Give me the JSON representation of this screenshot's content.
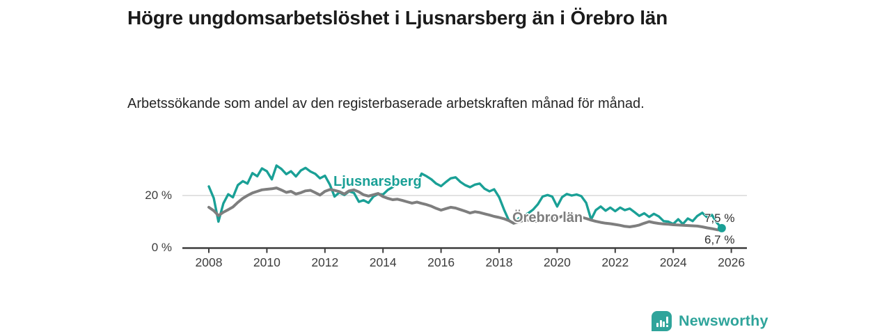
{
  "header": {
    "title": "Högre ungdomsarbetslöshet i Ljusnarsberg än i Örebro län",
    "subtitle": "Arbetssökande som andel av den registerbaserade arbetskraften månad för månad."
  },
  "chart_data": {
    "type": "line",
    "unit": "%",
    "grid": "horizontal-20-only",
    "legend": "inline-labels-on-lines",
    "axis_color": "#3d3d3d",
    "gridline_color": "#d8d8d8",
    "gridlines": [
      20
    ],
    "x_axis": {
      "ticks": [
        2008,
        2010,
        2012,
        2014,
        2016,
        2018,
        2020,
        2022,
        2024,
        2026
      ],
      "range": [
        2007.1,
        2026.55
      ]
    },
    "y_axis": {
      "ticks": [
        {
          "value": 0,
          "label": "0 %"
        },
        {
          "value": 20,
          "label": "20 %"
        }
      ],
      "range": [
        0,
        33
      ]
    },
    "series": [
      {
        "name": "Ljusnarsberg",
        "color": "#1aa096",
        "end_value": 7.5,
        "end_label": "7,5 %",
        "end_dot": true,
        "points": [
          [
            2008.0,
            23.5
          ],
          [
            2008.17,
            19.0
          ],
          [
            2008.33,
            10.0
          ],
          [
            2008.5,
            17.0
          ],
          [
            2008.67,
            20.5
          ],
          [
            2008.83,
            19.3
          ],
          [
            2009.0,
            24.0
          ],
          [
            2009.17,
            25.5
          ],
          [
            2009.33,
            24.6
          ],
          [
            2009.5,
            28.6
          ],
          [
            2009.67,
            27.4
          ],
          [
            2009.83,
            30.4
          ],
          [
            2010.0,
            29.3
          ],
          [
            2010.17,
            26.2
          ],
          [
            2010.33,
            31.5
          ],
          [
            2010.5,
            30.2
          ],
          [
            2010.67,
            28.2
          ],
          [
            2010.83,
            29.3
          ],
          [
            2011.0,
            27.3
          ],
          [
            2011.17,
            29.6
          ],
          [
            2011.33,
            30.6
          ],
          [
            2011.5,
            29.2
          ],
          [
            2011.67,
            28.3
          ],
          [
            2011.83,
            26.6
          ],
          [
            2012.0,
            27.6
          ],
          [
            2012.17,
            24.2
          ],
          [
            2012.33,
            19.6
          ],
          [
            2012.5,
            21.2
          ],
          [
            2012.67,
            20.2
          ],
          [
            2012.83,
            21.6
          ],
          [
            2013.0,
            21.0
          ],
          [
            2013.17,
            17.6
          ],
          [
            2013.33,
            18.2
          ],
          [
            2013.5,
            17.2
          ],
          [
            2013.67,
            19.6
          ],
          [
            2013.83,
            20.6
          ],
          [
            2014.0,
            20.4
          ],
          [
            2014.17,
            22.2
          ],
          [
            2014.33,
            23.2
          ],
          [
            2014.5,
            25.4
          ],
          [
            2014.67,
            24.4
          ],
          [
            2014.83,
            26.0
          ],
          [
            2015.0,
            26.6
          ],
          [
            2015.17,
            24.6
          ],
          [
            2015.33,
            28.4
          ],
          [
            2015.5,
            27.4
          ],
          [
            2015.67,
            26.2
          ],
          [
            2015.83,
            24.6
          ],
          [
            2016.0,
            23.6
          ],
          [
            2016.17,
            25.2
          ],
          [
            2016.33,
            26.6
          ],
          [
            2016.5,
            27.0
          ],
          [
            2016.67,
            25.2
          ],
          [
            2016.83,
            24.0
          ],
          [
            2017.0,
            23.2
          ],
          [
            2017.17,
            24.2
          ],
          [
            2017.33,
            24.6
          ],
          [
            2017.5,
            22.6
          ],
          [
            2017.67,
            21.6
          ],
          [
            2017.83,
            22.4
          ],
          [
            2018.0,
            19.4
          ],
          [
            2018.17,
            14.6
          ],
          [
            2018.33,
            10.6
          ],
          [
            2018.5,
            9.3
          ],
          [
            2018.67,
            11.2
          ],
          [
            2018.83,
            12.2
          ],
          [
            2019.0,
            13.2
          ],
          [
            2019.17,
            14.6
          ],
          [
            2019.33,
            16.6
          ],
          [
            2019.5,
            19.6
          ],
          [
            2019.67,
            20.2
          ],
          [
            2019.83,
            19.6
          ],
          [
            2020.0,
            15.8
          ],
          [
            2020.17,
            19.4
          ],
          [
            2020.33,
            20.6
          ],
          [
            2020.5,
            20.0
          ],
          [
            2020.67,
            20.4
          ],
          [
            2020.83,
            19.8
          ],
          [
            2021.0,
            17.2
          ],
          [
            2021.17,
            10.8
          ],
          [
            2021.33,
            14.4
          ],
          [
            2021.5,
            15.8
          ],
          [
            2021.67,
            14.2
          ],
          [
            2021.83,
            15.4
          ],
          [
            2022.0,
            14.0
          ],
          [
            2022.17,
            15.4
          ],
          [
            2022.33,
            14.4
          ],
          [
            2022.5,
            15.0
          ],
          [
            2022.67,
            13.6
          ],
          [
            2022.83,
            12.2
          ],
          [
            2023.0,
            13.2
          ],
          [
            2023.17,
            11.8
          ],
          [
            2023.33,
            13.0
          ],
          [
            2023.5,
            12.0
          ],
          [
            2023.67,
            10.2
          ],
          [
            2023.83,
            10.0
          ],
          [
            2024.0,
            9.1
          ],
          [
            2024.17,
            10.9
          ],
          [
            2024.33,
            9.1
          ],
          [
            2024.5,
            11.2
          ],
          [
            2024.67,
            10.2
          ],
          [
            2024.83,
            12.2
          ],
          [
            2025.0,
            13.4
          ],
          [
            2025.17,
            11.6
          ],
          [
            2025.33,
            12.6
          ],
          [
            2025.5,
            9.6
          ],
          [
            2025.67,
            7.5
          ]
        ]
      },
      {
        "name": "Örebro län",
        "color": "#7e7e7e",
        "end_value": 6.7,
        "end_label": "6,7 %",
        "end_dot": false,
        "points": [
          [
            2008.0,
            15.5
          ],
          [
            2008.17,
            14.2
          ],
          [
            2008.33,
            12.3
          ],
          [
            2008.5,
            13.6
          ],
          [
            2008.67,
            14.6
          ],
          [
            2008.83,
            15.6
          ],
          [
            2009.0,
            17.4
          ],
          [
            2009.17,
            18.9
          ],
          [
            2009.33,
            20.0
          ],
          [
            2009.5,
            21.0
          ],
          [
            2009.67,
            21.6
          ],
          [
            2009.83,
            22.2
          ],
          [
            2010.0,
            22.4
          ],
          [
            2010.17,
            22.6
          ],
          [
            2010.33,
            22.9
          ],
          [
            2010.5,
            22.1
          ],
          [
            2010.67,
            21.2
          ],
          [
            2010.83,
            21.6
          ],
          [
            2011.0,
            20.6
          ],
          [
            2011.17,
            21.1
          ],
          [
            2011.33,
            21.8
          ],
          [
            2011.5,
            22.0
          ],
          [
            2011.67,
            21.1
          ],
          [
            2011.83,
            20.2
          ],
          [
            2012.0,
            21.6
          ],
          [
            2012.17,
            22.3
          ],
          [
            2012.33,
            22.0
          ],
          [
            2012.5,
            21.5
          ],
          [
            2012.67,
            20.6
          ],
          [
            2012.83,
            21.8
          ],
          [
            2013.0,
            22.2
          ],
          [
            2013.17,
            21.4
          ],
          [
            2013.33,
            20.3
          ],
          [
            2013.5,
            19.8
          ],
          [
            2013.67,
            20.3
          ],
          [
            2013.83,
            20.8
          ],
          [
            2014.0,
            19.6
          ],
          [
            2014.17,
            18.9
          ],
          [
            2014.33,
            18.4
          ],
          [
            2014.5,
            18.6
          ],
          [
            2014.67,
            18.1
          ],
          [
            2014.83,
            17.6
          ],
          [
            2015.0,
            17.1
          ],
          [
            2015.17,
            17.5
          ],
          [
            2015.33,
            17.0
          ],
          [
            2015.5,
            16.5
          ],
          [
            2015.67,
            15.9
          ],
          [
            2015.83,
            15.1
          ],
          [
            2016.0,
            14.4
          ],
          [
            2016.17,
            15.0
          ],
          [
            2016.33,
            15.5
          ],
          [
            2016.5,
            15.2
          ],
          [
            2016.67,
            14.6
          ],
          [
            2016.83,
            14.0
          ],
          [
            2017.0,
            13.3
          ],
          [
            2017.17,
            13.8
          ],
          [
            2017.33,
            13.5
          ],
          [
            2017.5,
            13.0
          ],
          [
            2017.67,
            12.5
          ],
          [
            2017.83,
            12.0
          ],
          [
            2018.0,
            11.6
          ],
          [
            2018.17,
            11.1
          ],
          [
            2018.33,
            10.4
          ],
          [
            2018.5,
            9.4
          ],
          [
            2018.67,
            9.9
          ],
          [
            2018.83,
            10.4
          ],
          [
            2019.0,
            10.6
          ],
          [
            2019.17,
            10.3
          ],
          [
            2019.33,
            10.1
          ],
          [
            2019.5,
            10.3
          ],
          [
            2019.67,
            10.6
          ],
          [
            2019.83,
            10.9
          ],
          [
            2020.0,
            11.2
          ],
          [
            2020.17,
            12.1
          ],
          [
            2020.33,
            12.6
          ],
          [
            2020.5,
            12.4
          ],
          [
            2020.67,
            12.1
          ],
          [
            2020.83,
            11.7
          ],
          [
            2021.0,
            11.2
          ],
          [
            2021.17,
            10.6
          ],
          [
            2021.33,
            10.1
          ],
          [
            2021.5,
            9.7
          ],
          [
            2021.67,
            9.4
          ],
          [
            2021.83,
            9.2
          ],
          [
            2022.0,
            8.9
          ],
          [
            2022.17,
            8.6
          ],
          [
            2022.33,
            8.2
          ],
          [
            2022.5,
            8.0
          ],
          [
            2022.67,
            8.3
          ],
          [
            2022.83,
            8.7
          ],
          [
            2023.0,
            9.4
          ],
          [
            2023.17,
            10.0
          ],
          [
            2023.33,
            9.6
          ],
          [
            2023.5,
            9.3
          ],
          [
            2023.67,
            9.1
          ],
          [
            2023.83,
            9.0
          ],
          [
            2024.0,
            8.8
          ],
          [
            2024.17,
            8.7
          ],
          [
            2024.33,
            8.6
          ],
          [
            2024.5,
            8.5
          ],
          [
            2024.67,
            8.4
          ],
          [
            2024.83,
            8.3
          ],
          [
            2025.0,
            8.0
          ],
          [
            2025.17,
            7.6
          ],
          [
            2025.33,
            7.3
          ],
          [
            2025.5,
            6.9
          ],
          [
            2025.67,
            6.7
          ]
        ]
      }
    ]
  },
  "footer": {
    "brand": "Newsworthy",
    "brand_color": "#2fa49b",
    "logo_icon": "bar-chart-speech-bubble-icon"
  }
}
